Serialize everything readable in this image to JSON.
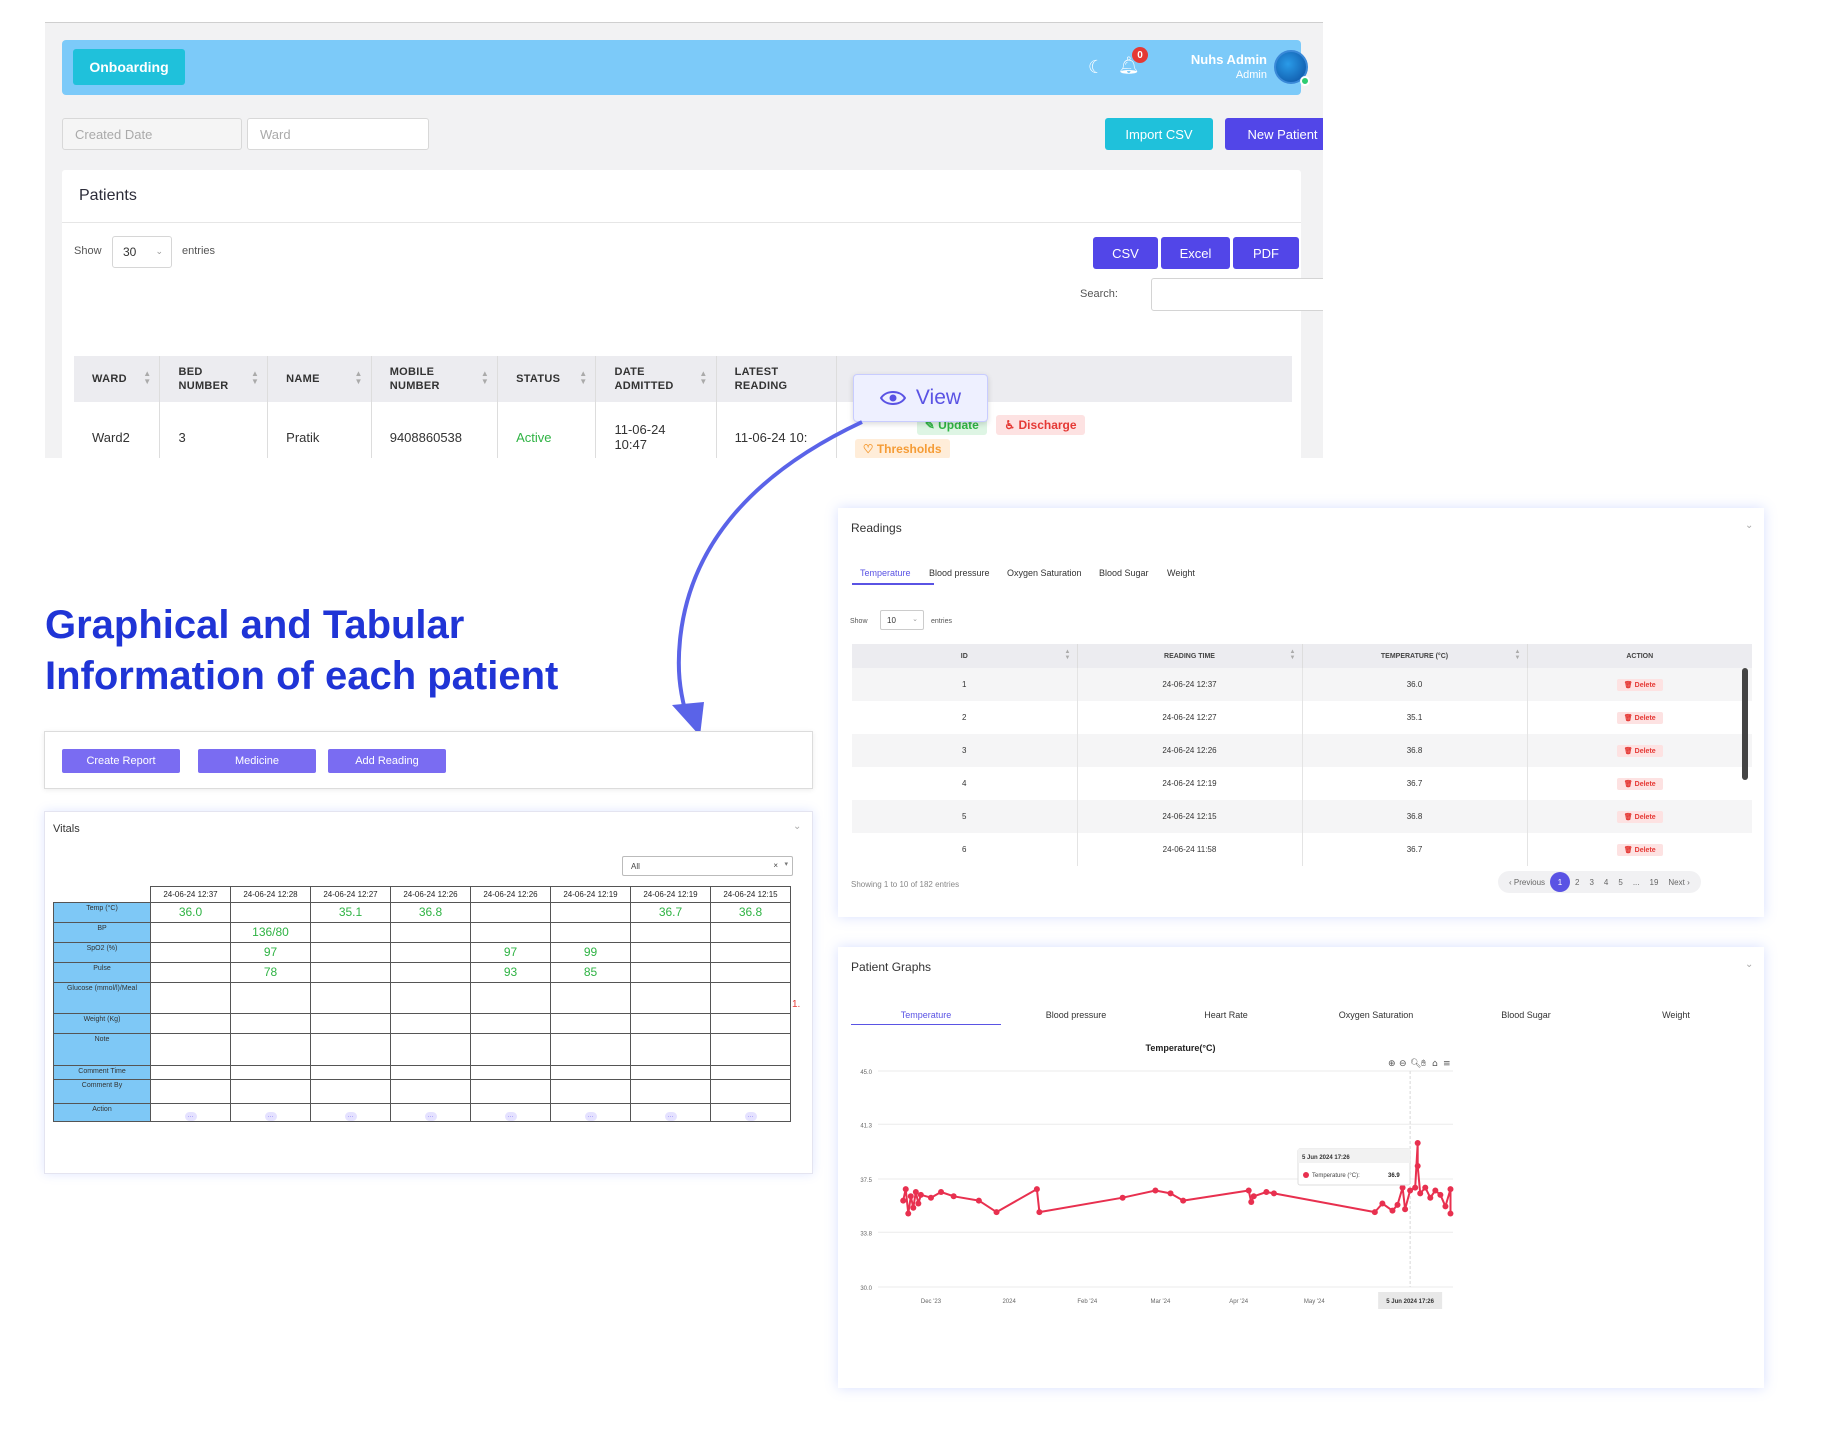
{
  "top": {
    "nav": {
      "onboarding_label": "Onboarding",
      "notif_count": "0",
      "user_name": "Nuhs Admin",
      "user_role": "Admin"
    },
    "filters": {
      "created_placeholder": "Created Date",
      "ward_placeholder": "Ward"
    },
    "buttons": {
      "import": "Import CSV",
      "new_patient": "New Patient"
    },
    "patients": {
      "title": "Patients",
      "show_label": "Show",
      "show_value": "30",
      "entries_label": "entries",
      "export": {
        "csv": "CSV",
        "excel": "Excel",
        "pdf": "PDF"
      },
      "search_label": "Search:",
      "columns": [
        [
          "WARD",
          ""
        ],
        [
          "BED",
          "NUMBER"
        ],
        [
          "NAME",
          ""
        ],
        [
          "MOBILE",
          "NUMBER"
        ],
        [
          "STATUS",
          ""
        ],
        [
          "DATE",
          "ADMITTED"
        ],
        [
          "LATEST",
          "READING"
        ],
        [
          "ACTION",
          ""
        ]
      ],
      "row": {
        "ward": "Ward2",
        "bed": "3",
        "name": "Pratik",
        "mobile": "9408860538",
        "status": "Active",
        "admitted": "11-06-24 10:47",
        "latest": "11-06-24 10:"
      },
      "actions": {
        "update": "Update",
        "discharge": "Discharge",
        "thresholds": "Thresholds"
      },
      "view_popup": "View"
    }
  },
  "headline": {
    "line1": "Graphical and Tabular",
    "line2": "Information of each patient"
  },
  "action_bar": {
    "report": "Create Report",
    "medicine": "Medicine",
    "add_reading": "Add Reading"
  },
  "vitals": {
    "title": "Vitals",
    "filter": "All",
    "dates": [
      "24-06-24 12:37",
      "24-06-24 12:28",
      "24-06-24 12:27",
      "24-06-24 12:26",
      "24-06-24 12:26",
      "24-06-24 12:19",
      "24-06-24 12:19",
      "24-06-24 12:15"
    ],
    "rows": [
      {
        "label": "Temp (°C)",
        "values": [
          "36.0",
          "",
          "35.1",
          "36.8",
          "",
          "",
          "36.7",
          "36.8"
        ]
      },
      {
        "label": "BP",
        "values": [
          "",
          "136/80",
          "",
          "",
          "",
          "",
          "",
          ""
        ]
      },
      {
        "label": "SpO2 (%)",
        "values": [
          "",
          "97",
          "",
          "",
          "97",
          "99",
          "",
          ""
        ]
      },
      {
        "label": "Pulse",
        "values": [
          "",
          "78",
          "",
          "",
          "93",
          "85",
          "",
          ""
        ]
      },
      {
        "label": "Glucose (mmol/l)/Meal",
        "values": [
          "",
          "",
          "",
          "",
          "",
          "",
          "",
          ""
        ]
      },
      {
        "label": "Weight (Kg)",
        "values": [
          "",
          "",
          "",
          "",
          "",
          "",
          "",
          ""
        ]
      },
      {
        "label": "Note",
        "values": [
          "",
          "",
          "",
          "",
          "",
          "",
          "",
          ""
        ]
      },
      {
        "label": "Comment Time",
        "values": [
          "",
          "",
          "",
          "",
          "",
          "",
          "",
          ""
        ]
      },
      {
        "label": "Comment By",
        "values": [
          "",
          "",
          "",
          "",
          "",
          "",
          "",
          ""
        ]
      },
      {
        "label": "Action",
        "values": [
          "",
          "",
          "",
          "",
          "",
          "",
          "",
          ""
        ]
      }
    ],
    "overflow_value": "1."
  },
  "readings": {
    "title": "Readings",
    "tabs": [
      "Temperature",
      "Blood pressure",
      "Oxygen Saturation",
      "Blood Sugar",
      "Weight"
    ],
    "show_label": "Show",
    "show_value": "10",
    "entries_label": "entries",
    "columns": [
      "ID",
      "READING TIME",
      "TEMPERATURE (°C)",
      "ACTION"
    ],
    "rows": [
      [
        "1",
        "24-06-24 12:37",
        "36.0"
      ],
      [
        "2",
        "24-06-24 12:27",
        "35.1"
      ],
      [
        "3",
        "24-06-24 12:26",
        "36.8"
      ],
      [
        "4",
        "24-06-24 12:19",
        "36.7"
      ],
      [
        "5",
        "24-06-24 12:15",
        "36.8"
      ],
      [
        "6",
        "24-06-24 11:58",
        "36.7"
      ]
    ],
    "delete_label": "Delete",
    "showing": "Showing 1 to 10 of 182 entries",
    "pager": [
      "‹ Previous",
      "1",
      "2",
      "3",
      "4",
      "5",
      "...",
      "19",
      "Next ›"
    ]
  },
  "graphs": {
    "title": "Patient Graphs",
    "tabs": [
      "Temperature",
      "Blood pressure",
      "Heart Rate",
      "Oxygen Saturation",
      "Blood Sugar",
      "Weight"
    ],
    "tooltip": {
      "date": "5 Jun 2024 17:26",
      "label": "Temperature (°C):",
      "value": "36.9"
    },
    "crosshair_label": "5 Jun 2024 17:26"
  },
  "colors": {
    "primary": "#5246e8",
    "cyan": "#1fc1db",
    "headline": "#1f34d6",
    "series": "#e8304f",
    "arrow": "#5a63e8"
  },
  "chart_data": {
    "type": "line",
    "title": "Temperature(°C)",
    "ylim": [
      30.0,
      45.0
    ],
    "yticks": [
      "45.0",
      "41.3",
      "37.5",
      "33.8",
      "30.0"
    ],
    "xticks": [
      "Dec '23",
      "2024",
      "Feb '24",
      "Mar '24",
      "Apr '24",
      "May '24"
    ],
    "xlim": [
      "2023-11-10",
      "2024-06-25"
    ],
    "series": [
      {
        "name": "Temperature (°C)",
        "color": "#e8304f",
        "points": [
          [
            "2023-11-20",
            36.0
          ],
          [
            "2023-11-21",
            36.8
          ],
          [
            "2023-11-22",
            35.1
          ],
          [
            "2023-11-23",
            36.3
          ],
          [
            "2023-11-24",
            35.5
          ],
          [
            "2023-11-25",
            36.6
          ],
          [
            "2023-11-26",
            35.8
          ],
          [
            "2023-11-27",
            36.4
          ],
          [
            "2023-12-01",
            36.2
          ],
          [
            "2023-12-05",
            36.6
          ],
          [
            "2023-12-10",
            36.3
          ],
          [
            "2023-12-20",
            36.0
          ],
          [
            "2023-12-27",
            35.2
          ],
          [
            "2024-01-12",
            36.8
          ],
          [
            "2024-01-13",
            35.2
          ],
          [
            "2024-02-15",
            36.2
          ],
          [
            "2024-02-28",
            36.7
          ],
          [
            "2024-03-05",
            36.5
          ],
          [
            "2024-03-10",
            36.0
          ],
          [
            "2024-04-05",
            36.7
          ],
          [
            "2024-04-06",
            35.9
          ],
          [
            "2024-04-07",
            36.3
          ],
          [
            "2024-04-12",
            36.6
          ],
          [
            "2024-04-15",
            36.5
          ],
          [
            "2024-05-25",
            35.2
          ],
          [
            "2024-05-28",
            35.8
          ],
          [
            "2024-06-01",
            35.3
          ],
          [
            "2024-06-03",
            35.7
          ],
          [
            "2024-06-05",
            36.9
          ],
          [
            "2024-06-06",
            35.4
          ],
          [
            "2024-06-08",
            36.7
          ],
          [
            "2024-06-10",
            36.9
          ],
          [
            "2024-06-11",
            40.0
          ],
          [
            "2024-06-11",
            38.4
          ],
          [
            "2024-06-12",
            36.5
          ],
          [
            "2024-06-14",
            36.9
          ],
          [
            "2024-06-16",
            36.2
          ],
          [
            "2024-06-18",
            36.7
          ],
          [
            "2024-06-20",
            36.4
          ],
          [
            "2024-06-22",
            35.6
          ],
          [
            "2024-06-24",
            36.8
          ],
          [
            "2024-06-24",
            35.1
          ]
        ]
      }
    ]
  }
}
